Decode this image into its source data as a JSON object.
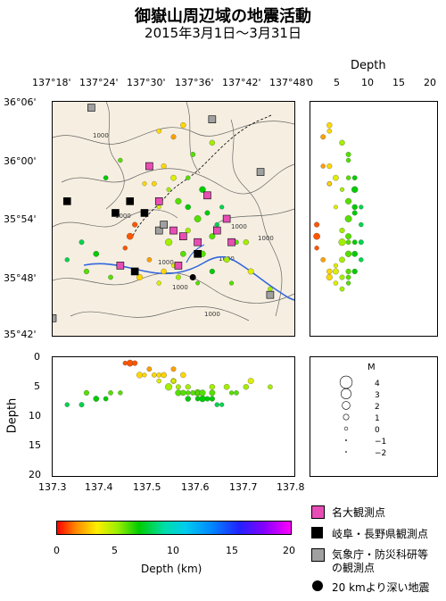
{
  "header": {
    "title": "御嶽山周辺域の地震活動",
    "subtitle": "2015年3月1日～3月31日"
  },
  "map": {
    "lon_ticks": [
      "137°18'",
      "137°24'",
      "137°30'",
      "137°36'",
      "137°42'",
      "137°48'"
    ],
    "lat_ticks": [
      "36°06'",
      "36°00'",
      "35°54'",
      "35°48'",
      "35°42'"
    ],
    "contour_labels": [
      "1000",
      "1000",
      "1000",
      "1000",
      "1000",
      "1000",
      "1000",
      "1000"
    ]
  },
  "depth_panel_right": {
    "title": "Depth",
    "ticks": [
      "0",
      "5",
      "10",
      "15",
      "20"
    ]
  },
  "depth_panel_bottom": {
    "ylabel": "Depth",
    "yticks": [
      "0",
      "5",
      "10",
      "15",
      "20"
    ],
    "xticks": [
      "137.3",
      "137.4",
      "137.5",
      "137.6",
      "137.7",
      "137.8"
    ]
  },
  "magnitude_legend": {
    "title": "M",
    "items": [
      {
        "label": "4",
        "m": 4
      },
      {
        "label": "3",
        "m": 3
      },
      {
        "label": "2",
        "m": 2
      },
      {
        "label": "1",
        "m": 1
      },
      {
        "label": "0",
        "m": 0
      },
      {
        "label": "−1",
        "m": -1
      },
      {
        "label": "−2",
        "m": -2
      }
    ]
  },
  "colorbar": {
    "ticks": [
      "0",
      "5",
      "10",
      "15",
      "20"
    ],
    "label": "Depth (km)"
  },
  "station_legend": {
    "nagoya": "名大観測点",
    "gifu": "岐阜・長野県観測点",
    "jma_line1": "気象庁・防災科研等",
    "jma_line2": "の観測点",
    "deep": "20 kmより深い地震"
  },
  "colors": {
    "land": "#f6efe1",
    "contour": "#666666",
    "river": "#3366dd",
    "nagoya_station": "#e84db5",
    "gifu_station": "#000000",
    "jma_station": "#a0a0a0"
  },
  "chart_data": {
    "type": "scatter",
    "title": "御嶽山周辺域の地震活動",
    "subtitle": "2015年3月1日～3月31日",
    "color_encoding": "depth_km",
    "note_encoding": "marker size = magnitude M",
    "lon_range": [
      137.3,
      137.8
    ],
    "lat_range": [
      35.7,
      36.1
    ],
    "depth_range": [
      0,
      20
    ],
    "events_lon_lat_depth_mag": [
      [
        137.5,
        35.99,
        2,
        0.5
      ],
      [
        137.53,
        35.99,
        3,
        0.8
      ],
      [
        137.55,
        35.97,
        4,
        1.0
      ],
      [
        137.51,
        35.96,
        3,
        0.6
      ],
      [
        137.54,
        35.95,
        5,
        0.4
      ],
      [
        137.56,
        35.93,
        6,
        1.2
      ],
      [
        137.52,
        35.92,
        4,
        0.3
      ],
      [
        137.58,
        35.92,
        7,
        0.9
      ],
      [
        137.6,
        35.9,
        6,
        1.5
      ],
      [
        137.62,
        35.91,
        7,
        0.7
      ],
      [
        137.64,
        35.89,
        8,
        0.5
      ],
      [
        137.63,
        35.87,
        6,
        1.1
      ],
      [
        137.6,
        35.86,
        7,
        0.6
      ],
      [
        137.58,
        35.88,
        5,
        0.8
      ],
      [
        137.57,
        35.84,
        6,
        1.0
      ],
      [
        137.55,
        35.82,
        4,
        0.4
      ],
      [
        137.53,
        35.81,
        3,
        0.9
      ],
      [
        137.5,
        35.83,
        2,
        0.6
      ],
      [
        137.48,
        35.8,
        3,
        1.2
      ],
      [
        137.52,
        35.79,
        4,
        0.5
      ],
      [
        137.56,
        35.8,
        5,
        0.7
      ],
      [
        137.6,
        35.79,
        6,
        0.3
      ],
      [
        137.63,
        35.81,
        7,
        0.8
      ],
      [
        137.66,
        35.83,
        5,
        1.0
      ],
      [
        137.68,
        35.86,
        6,
        0.6
      ],
      [
        137.65,
        35.92,
        8,
        0.4
      ],
      [
        137.61,
        35.95,
        7,
        1.3
      ],
      [
        137.58,
        35.97,
        6,
        0.5
      ],
      [
        137.55,
        36.04,
        2,
        0.7
      ],
      [
        137.52,
        36.05,
        3,
        0.6
      ],
      [
        137.57,
        36.06,
        3,
        0.9
      ],
      [
        137.46,
        35.87,
        1,
        1.4
      ],
      [
        137.47,
        35.89,
        1,
        0.8
      ],
      [
        137.45,
        35.85,
        1,
        0.5
      ],
      [
        137.39,
        35.84,
        7,
        1.0
      ],
      [
        137.36,
        35.86,
        8,
        0.7
      ],
      [
        137.42,
        35.8,
        6,
        0.6
      ],
      [
        137.7,
        35.86,
        5,
        0.9
      ],
      [
        137.67,
        35.79,
        6,
        0.4
      ],
      [
        137.71,
        35.81,
        4,
        1.1
      ],
      [
        137.44,
        36.0,
        6,
        0.5
      ],
      [
        137.41,
        35.97,
        7,
        0.6
      ],
      [
        137.33,
        35.83,
        8,
        0.5
      ],
      [
        137.37,
        35.81,
        6,
        0.8
      ],
      [
        137.75,
        35.78,
        5,
        0.6
      ],
      [
        137.59,
        36.01,
        6,
        0.7
      ],
      [
        137.63,
        36.03,
        5,
        0.9
      ],
      [
        137.49,
        35.96,
        3,
        0.4
      ],
      [
        137.54,
        35.86,
        5,
        1.6
      ],
      [
        137.61,
        35.84,
        6,
        1.2
      ]
    ],
    "stations": {
      "名大観測点": [
        [
          137.5,
          35.99
        ],
        [
          137.52,
          35.93
        ],
        [
          137.55,
          35.88
        ],
        [
          137.57,
          35.87
        ],
        [
          137.6,
          35.86
        ],
        [
          137.56,
          35.82
        ],
        [
          137.44,
          35.82
        ],
        [
          137.62,
          35.94
        ],
        [
          137.66,
          35.9
        ],
        [
          137.67,
          35.86
        ],
        [
          137.64,
          35.88
        ]
      ],
      "岐阜・長野県観測点": [
        [
          137.33,
          35.93
        ],
        [
          137.46,
          35.93
        ],
        [
          137.49,
          35.91
        ],
        [
          137.43,
          35.91
        ],
        [
          137.47,
          35.81
        ],
        [
          137.6,
          35.84
        ]
      ],
      "気象庁・防災科研等の観測点": [
        [
          137.38,
          36.09
        ],
        [
          137.63,
          36.07
        ],
        [
          137.73,
          35.98
        ],
        [
          137.52,
          35.88
        ],
        [
          137.53,
          35.89
        ],
        [
          137.75,
          35.77
        ],
        [
          137.3,
          35.73
        ]
      ],
      "20 kmより深い地震": [
        [
          137.59,
          35.8
        ]
      ]
    }
  }
}
